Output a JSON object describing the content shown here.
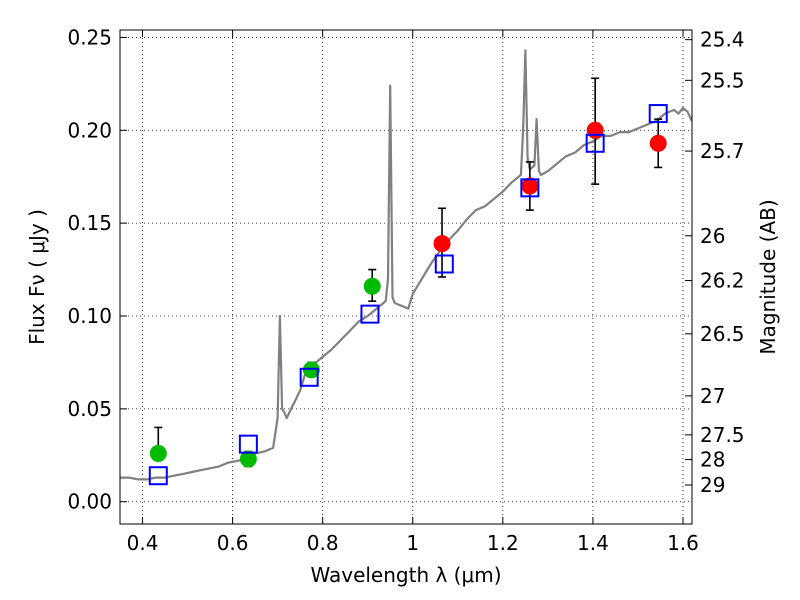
{
  "chart_data": {
    "type": "scatter",
    "xlabel": "Wavelength  λ (μm)",
    "ylabel": "Flux  Fν  ( μJy )",
    "ylabel_right": "Magnitude (AB)",
    "xlim": [
      0.35,
      1.62
    ],
    "ylim": [
      -0.012,
      0.254
    ],
    "grid": true,
    "x_ticks": [
      0.4,
      0.6,
      0.8,
      1.0,
      1.2,
      1.4,
      1.6
    ],
    "x_tick_labels": [
      "0.4",
      "0.6",
      "0.8",
      "1",
      "1.2",
      "1.4",
      "1.6"
    ],
    "y_ticks": [
      0.0,
      0.05,
      0.1,
      0.15,
      0.2,
      0.25
    ],
    "y_tick_labels": [
      "0.00",
      "0.05",
      "0.10",
      "0.15",
      "0.20",
      "0.25"
    ],
    "right_ticks": [
      {
        "label": "25.4",
        "flux": 0.2488
      },
      {
        "label": "25.5",
        "flux": 0.2269
      },
      {
        "label": "25.7",
        "flux": 0.1888
      },
      {
        "label": "26",
        "flux": 0.1432
      },
      {
        "label": "26.2",
        "flux": 0.1191
      },
      {
        "label": "26.5",
        "flux": 0.0904
      },
      {
        "label": "27",
        "flux": 0.057
      },
      {
        "label": "27.5",
        "flux": 0.036
      },
      {
        "label": "28",
        "flux": 0.0227
      },
      {
        "label": "29",
        "flux": 0.009
      }
    ],
    "series": [
      {
        "type": "line",
        "color": "#808080",
        "x": [
          0.35,
          0.37,
          0.39,
          0.41,
          0.43,
          0.45,
          0.47,
          0.49,
          0.51,
          0.53,
          0.55,
          0.57,
          0.59,
          0.61,
          0.63,
          0.65,
          0.67,
          0.69,
          0.7,
          0.705,
          0.71,
          0.715,
          0.72,
          0.73,
          0.74,
          0.75,
          0.76,
          0.78,
          0.8,
          0.82,
          0.84,
          0.86,
          0.88,
          0.9,
          0.92,
          0.94,
          0.945,
          0.95,
          0.955,
          0.96,
          0.97,
          0.98,
          0.99,
          1.0,
          1.02,
          1.04,
          1.06,
          1.08,
          1.1,
          1.12,
          1.14,
          1.16,
          1.18,
          1.2,
          1.22,
          1.24,
          1.245,
          1.25,
          1.255,
          1.26,
          1.27,
          1.275,
          1.28,
          1.285,
          1.3,
          1.32,
          1.34,
          1.36,
          1.38,
          1.4,
          1.42,
          1.44,
          1.46,
          1.48,
          1.5,
          1.52,
          1.54,
          1.56,
          1.58,
          1.59,
          1.6,
          1.61,
          1.62
        ],
        "y": [
          0.013,
          0.013,
          0.012,
          0.012,
          0.013,
          0.013,
          0.014,
          0.015,
          0.016,
          0.017,
          0.018,
          0.019,
          0.021,
          0.022,
          0.023,
          0.026,
          0.027,
          0.029,
          0.045,
          0.1,
          0.05,
          0.048,
          0.045,
          0.05,
          0.055,
          0.06,
          0.068,
          0.074,
          0.078,
          0.082,
          0.087,
          0.092,
          0.097,
          0.1,
          0.104,
          0.108,
          0.12,
          0.224,
          0.11,
          0.107,
          0.106,
          0.105,
          0.104,
          0.112,
          0.12,
          0.128,
          0.135,
          0.141,
          0.146,
          0.152,
          0.157,
          0.159,
          0.163,
          0.167,
          0.172,
          0.176,
          0.2,
          0.243,
          0.185,
          0.179,
          0.181,
          0.206,
          0.178,
          0.176,
          0.178,
          0.182,
          0.186,
          0.188,
          0.192,
          0.194,
          0.197,
          0.197,
          0.199,
          0.199,
          0.201,
          0.203,
          0.205,
          0.209,
          0.211,
          0.209,
          0.212,
          0.21,
          0.205
        ]
      },
      {
        "type": "scatter",
        "marker": "circle",
        "color": "#00bb00",
        "x": [
          0.435,
          0.635,
          0.775,
          0.91
        ],
        "y": [
          0.026,
          0.023,
          0.071,
          0.116
        ],
        "err_low": [
          0.026,
          0.019,
          0.068,
          0.108
        ],
        "err_high": [
          0.04,
          0.027,
          0.075,
          0.125
        ]
      },
      {
        "type": "scatter",
        "marker": "circle",
        "color": "#ff0000",
        "x": [
          1.065,
          1.26,
          1.405,
          1.545
        ],
        "y": [
          0.139,
          0.17,
          0.2,
          0.193
        ],
        "err_low": [
          0.121,
          0.157,
          0.171,
          0.18
        ],
        "err_high": [
          0.158,
          0.183,
          0.228,
          0.206
        ]
      },
      {
        "type": "scatter",
        "marker": "open-square",
        "color": "#0000ff",
        "x": [
          0.435,
          0.635,
          0.77,
          0.905,
          1.07,
          1.26,
          1.405,
          1.545
        ],
        "y": [
          0.014,
          0.031,
          0.067,
          0.101,
          0.128,
          0.169,
          0.193,
          0.209
        ]
      }
    ]
  }
}
